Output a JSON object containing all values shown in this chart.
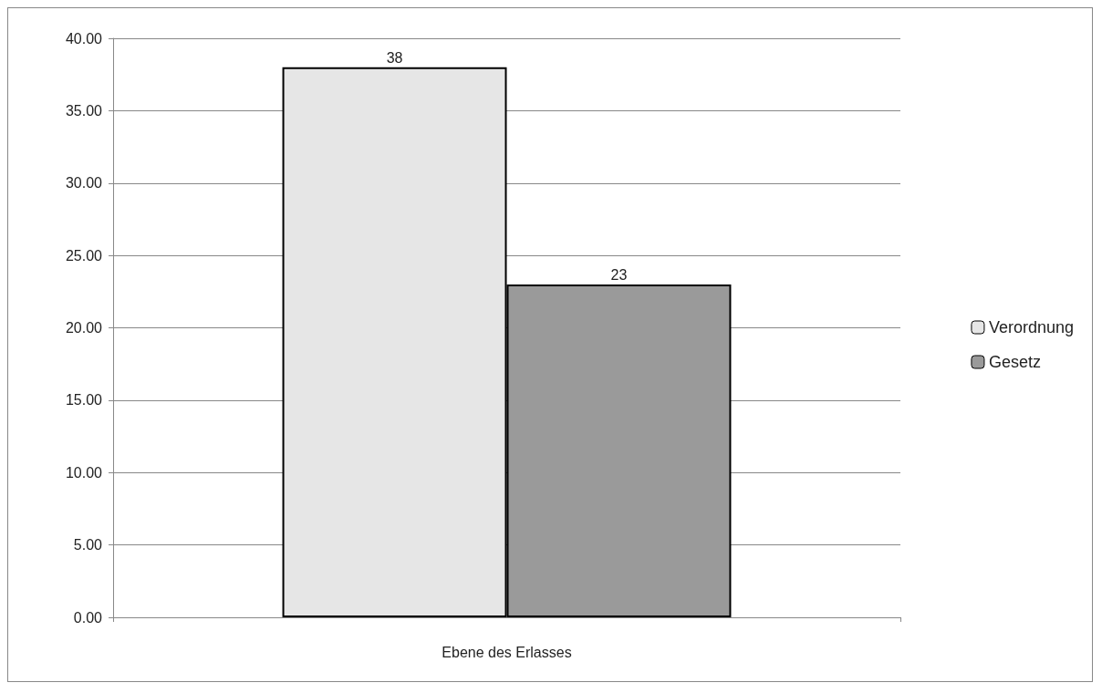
{
  "chart_data": {
    "type": "bar",
    "xlabel": "Ebene des Erlasses",
    "categories": [
      null
    ],
    "series": [
      {
        "name": "Verordnung",
        "color": "#e6e6e6",
        "values": [
          38
        ]
      },
      {
        "name": "Gesetz",
        "color": "#9a9a9a",
        "values": [
          23
        ]
      }
    ],
    "ylim": [
      0,
      40
    ],
    "yticks": [
      {
        "value": 0,
        "label": "0.00"
      },
      {
        "value": 5,
        "label": "5.00"
      },
      {
        "value": 10,
        "label": "10.00"
      },
      {
        "value": 15,
        "label": "15.00"
      },
      {
        "value": 20,
        "label": "20.00"
      },
      {
        "value": 25,
        "label": "25.00"
      },
      {
        "value": 30,
        "label": "30.00"
      },
      {
        "value": 35,
        "label": "35.00"
      },
      {
        "value": 40,
        "label": "40.00"
      }
    ],
    "grid": "y",
    "legend": "right",
    "data_labels": true
  }
}
